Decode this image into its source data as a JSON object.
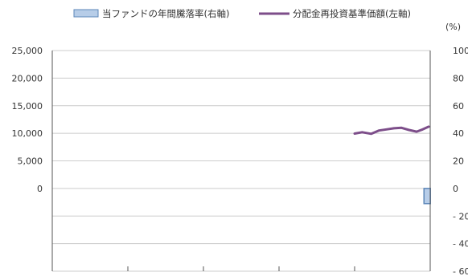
{
  "chart_data": {
    "type": "bar+line",
    "legend": {
      "bar_label": "当ファンドの年間騰落率(右軸)",
      "line_label": "分配金再投資基準価額(左軸)",
      "placement": "top"
    },
    "left_axis": {
      "ylim": [
        -15000,
        25000
      ],
      "ticks": [
        0,
        5000,
        10000,
        15000,
        20000,
        25000
      ],
      "tick_labels": [
        "0",
        "5,000",
        "10,000",
        "15,000",
        "20,000",
        "25,000"
      ]
    },
    "right_axis": {
      "unit_label": "(%)",
      "ylim": [
        -60,
        100
      ],
      "ticks": [
        -60,
        -40,
        -20,
        0,
        20,
        40,
        60,
        80,
        100
      ],
      "tick_labels": [
        "- 60",
        "- 40",
        "- 20",
        "0",
        "20",
        "40",
        "60",
        "80",
        "100"
      ]
    },
    "x_periods": 5,
    "grid": true,
    "series": [
      {
        "name": "当ファンドの年間騰落率(右軸)",
        "kind": "bar",
        "axis": "right",
        "x": [
          4.96
        ],
        "values": [
          -11
        ]
      },
      {
        "name": "分配金再投資基準価額(左軸)",
        "kind": "line",
        "axis": "left",
        "x": [
          4.0,
          4.1,
          4.22,
          4.32,
          4.42,
          4.52,
          4.62,
          4.72,
          4.82,
          4.9,
          4.98
        ],
        "values": [
          9950,
          10200,
          9900,
          10500,
          10700,
          10900,
          11000,
          10600,
          10300,
          10700,
          11200
        ]
      }
    ],
    "colors": {
      "line": "#7d4e8a",
      "bar_fill": "#b7cde8",
      "bar_stroke": "#5b86b8",
      "grid": "#cccccc",
      "axis": "#555555"
    }
  }
}
